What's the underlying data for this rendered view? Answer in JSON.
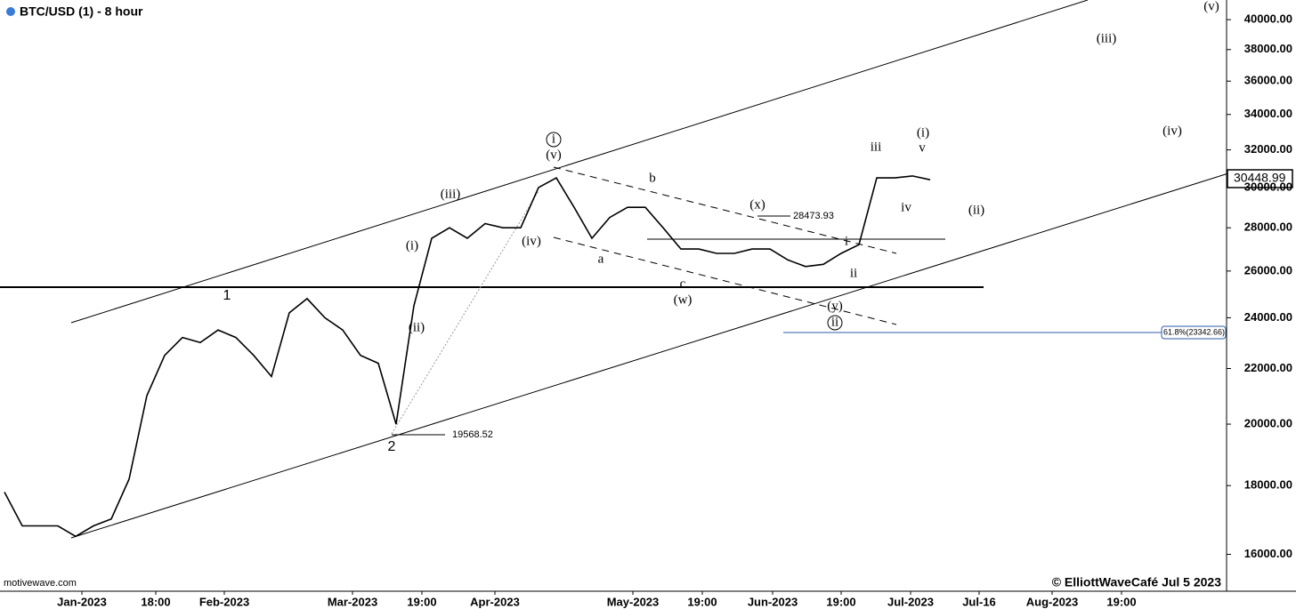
{
  "chart_data": {
    "type": "line",
    "title": "BTC/USD (1) - 8 hour",
    "log_scale": true,
    "color": "#000000",
    "ylim": [
      15020,
      41370
    ],
    "yticks": [
      {
        "value": 16000,
        "label": "16000.00"
      },
      {
        "value": 18000,
        "label": "18000.00"
      },
      {
        "value": 20000,
        "label": "20000.00"
      },
      {
        "value": 22000,
        "label": "22000.00"
      },
      {
        "value": 24000,
        "label": "24000.00"
      },
      {
        "value": 26000,
        "label": "26000.00"
      },
      {
        "value": 28000,
        "label": "28000.00"
      },
      {
        "value": 30000,
        "label": "30000.00"
      },
      {
        "value": 32000,
        "label": "32000.00"
      },
      {
        "value": 34000,
        "label": "34000.00"
      },
      {
        "value": 36000,
        "label": "36000.00"
      },
      {
        "value": 38000,
        "label": "38000.00"
      },
      {
        "value": 40000,
        "label": "40000.00"
      }
    ],
    "x_labels": [
      "Jan-2023",
      "18:00",
      "Feb-2023",
      "Mar-2023",
      "19:00",
      "Apr-2023",
      "May-2023",
      "19:00",
      "Jun-2023",
      "19:00",
      "Jul-2023",
      "Jul-16",
      "Aug-2023",
      "19:00"
    ],
    "values": [
      17800,
      16800,
      16800,
      16800,
      16500,
      16800,
      17000,
      18200,
      21000,
      22500,
      23200,
      23000,
      23500,
      23200,
      22500,
      21700,
      24200,
      24800,
      24000,
      23500,
      22500,
      22200,
      20000,
      24500,
      27500,
      28000,
      27500,
      28200,
      28000,
      28000,
      30000,
      30500,
      29000,
      27500,
      28500,
      29000,
      29000,
      28000,
      27000,
      27000,
      26800,
      26800,
      27000,
      27000,
      26500,
      26200,
      26300,
      26800,
      27200,
      30500,
      30500,
      30600,
      30400
    ],
    "last_price": "30448.99",
    "annotations": [
      "1",
      "2",
      "(i)",
      "(ii)",
      "(iii)",
      "(iv)",
      "(v)",
      "i",
      "a",
      "b",
      "c",
      "(w)",
      "(x)",
      "(y)",
      "ii",
      "i",
      "ii",
      "iii",
      "iv",
      "v",
      "(i)",
      "(ii)",
      "(iii)",
      "(iv)",
      "(v)",
      "28473.93",
      "19568.52",
      "61.8%(23342.66)"
    ],
    "source": "motivewave.com",
    "copyright": "© ElliottWaveCafé Jul 5 2023"
  }
}
